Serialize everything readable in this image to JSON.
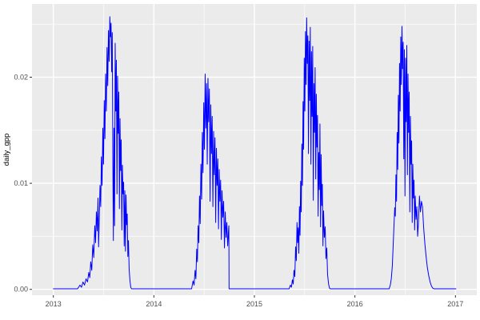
{
  "chart_data": {
    "type": "line",
    "title": "",
    "xlabel": "",
    "ylabel": "daily_gpp",
    "legend": "none",
    "grid": "on",
    "x_range": [
      2012.7875,
      2017.2125
    ],
    "y_range": [
      -0.00055,
      0.0269
    ],
    "x_ticks": [
      2013,
      2014,
      2015,
      2016,
      2017
    ],
    "x_tick_labels": [
      "2013",
      "2014",
      "2015",
      "2016",
      "2017"
    ],
    "x_minor_ticks": [
      2013.5,
      2014.5,
      2015.5,
      2016.5
    ],
    "y_ticks": [
      0,
      0.01,
      0.02
    ],
    "y_tick_labels": [
      "0.00",
      "0.01",
      "0.02"
    ],
    "y_minor_ticks": [
      0.005,
      0.015,
      0.025
    ],
    "colors": {
      "panel_background": "#EBEBEB",
      "gridline": "#FFFFFF",
      "line": "#0000FF",
      "axis_text": "#4D4D4D",
      "tick_mark": "#333333",
      "figure_background": "#FFFFFF"
    },
    "series": [
      {
        "name": "daily_gpp",
        "color": "#0000FF",
        "points": [
          [
            2013.0,
            5e-05
          ],
          [
            2013.24,
            5e-05
          ],
          [
            2013.265,
            0.0004
          ],
          [
            2013.28,
            0.0002
          ],
          [
            2013.295,
            0.0007
          ],
          [
            2013.31,
            0.0004
          ],
          [
            2013.325,
            0.001
          ],
          [
            2013.34,
            0.0007
          ],
          [
            2013.352,
            0.0016
          ],
          [
            2013.362,
            0.0011
          ],
          [
            2013.372,
            0.0026
          ],
          [
            2013.382,
            0.0018
          ],
          [
            2013.392,
            0.0042
          ],
          [
            2013.402,
            0.003
          ],
          [
            2013.412,
            0.006
          ],
          [
            2013.42,
            0.0044
          ],
          [
            2013.428,
            0.0073
          ],
          [
            2013.436,
            0.0055
          ],
          [
            2013.444,
            0.0086
          ],
          [
            2013.45,
            0.004
          ],
          [
            2013.457,
            0.0068
          ],
          [
            2013.464,
            0.0098
          ],
          [
            2013.471,
            0.0078
          ],
          [
            2013.478,
            0.0125
          ],
          [
            2013.485,
            0.0098
          ],
          [
            2013.492,
            0.0152
          ],
          [
            2013.499,
            0.0118
          ],
          [
            2013.506,
            0.0178
          ],
          [
            2013.513,
            0.0142
          ],
          [
            2013.52,
            0.0203
          ],
          [
            2013.527,
            0.0168
          ],
          [
            2013.534,
            0.0228
          ],
          [
            2013.541,
            0.0192
          ],
          [
            2013.548,
            0.0244
          ],
          [
            2013.555,
            0.0215
          ],
          [
            2013.562,
            0.0257
          ],
          [
            2013.568,
            0.0238
          ],
          [
            2013.574,
            0.0251
          ],
          [
            2013.58,
            0.0205
          ],
          [
            2013.586,
            0.0242
          ],
          [
            2013.592,
            0.0118
          ],
          [
            2013.597,
            0.0046
          ],
          [
            2013.603,
            0.0152
          ],
          [
            2013.609,
            0.006
          ],
          [
            2013.615,
            0.0232
          ],
          [
            2013.621,
            0.0168
          ],
          [
            2013.627,
            0.0216
          ],
          [
            2013.633,
            0.009
          ],
          [
            2013.639,
            0.0201
          ],
          [
            2013.645,
            0.0147
          ],
          [
            2013.651,
            0.0186
          ],
          [
            2013.657,
            0.0076
          ],
          [
            2013.663,
            0.0161
          ],
          [
            2013.669,
            0.0112
          ],
          [
            2013.675,
            0.0141
          ],
          [
            2013.681,
            0.0056
          ],
          [
            2013.687,
            0.0117
          ],
          [
            2013.693,
            0.009
          ],
          [
            2013.699,
            0.0101
          ],
          [
            2013.705,
            0.0041
          ],
          [
            2013.711,
            0.0093
          ],
          [
            2013.717,
            0.0036
          ],
          [
            2013.723,
            0.0089
          ],
          [
            2013.729,
            0.0061
          ],
          [
            2013.735,
            0.0071
          ],
          [
            2013.741,
            0.0031
          ],
          [
            2013.747,
            0.0046
          ],
          [
            2013.754,
            0.0019
          ],
          [
            2013.762,
            0.0008
          ],
          [
            2013.77,
            0.0002
          ],
          [
            2013.778,
            5e-05
          ],
          [
            2014.375,
            5e-05
          ],
          [
            2014.39,
            0.0008
          ],
          [
            2014.4,
            0.0004
          ],
          [
            2014.41,
            0.0018
          ],
          [
            2014.418,
            0.001
          ],
          [
            2014.426,
            0.0038
          ],
          [
            2014.433,
            0.0026
          ],
          [
            2014.44,
            0.006
          ],
          [
            2014.447,
            0.0044
          ],
          [
            2014.454,
            0.0088
          ],
          [
            2014.461,
            0.0062
          ],
          [
            2014.468,
            0.0118
          ],
          [
            2014.475,
            0.0085
          ],
          [
            2014.482,
            0.0148
          ],
          [
            2014.489,
            0.011
          ],
          [
            2014.496,
            0.0176
          ],
          [
            2014.503,
            0.0132
          ],
          [
            2014.51,
            0.0203
          ],
          [
            2014.517,
            0.0152
          ],
          [
            2014.524,
            0.0194
          ],
          [
            2014.531,
            0.0118
          ],
          [
            2014.538,
            0.0199
          ],
          [
            2014.545,
            0.0158
          ],
          [
            2014.552,
            0.0189
          ],
          [
            2014.559,
            0.0083
          ],
          [
            2014.566,
            0.0174
          ],
          [
            2014.573,
            0.0128
          ],
          [
            2014.58,
            0.0163
          ],
          [
            2014.587,
            0.0078
          ],
          [
            2014.594,
            0.0149
          ],
          [
            2014.601,
            0.0108
          ],
          [
            2014.608,
            0.0143
          ],
          [
            2014.615,
            0.0063
          ],
          [
            2014.622,
            0.0133
          ],
          [
            2014.629,
            0.0098
          ],
          [
            2014.636,
            0.0123
          ],
          [
            2014.643,
            0.0057
          ],
          [
            2014.65,
            0.0113
          ],
          [
            2014.657,
            0.0083
          ],
          [
            2014.664,
            0.0103
          ],
          [
            2014.671,
            0.0047
          ],
          [
            2014.678,
            0.0093
          ],
          [
            2014.686,
            0.0068
          ],
          [
            2014.694,
            0.0083
          ],
          [
            2014.702,
            0.0039
          ],
          [
            2014.71,
            0.0073
          ],
          [
            2014.718,
            0.0049
          ],
          [
            2014.726,
            0.0063
          ],
          [
            2014.734,
            0.0041
          ],
          [
            2014.741,
            0.0053
          ],
          [
            2014.746,
            0.006
          ],
          [
            2014.748,
            5e-05
          ],
          [
            2015.345,
            5e-05
          ],
          [
            2015.358,
            0.0004
          ],
          [
            2015.368,
            0.0002
          ],
          [
            2015.378,
            0.0009
          ],
          [
            2015.386,
            0.0005
          ],
          [
            2015.394,
            0.0018
          ],
          [
            2015.402,
            0.0012
          ],
          [
            2015.41,
            0.004
          ],
          [
            2015.417,
            0.0027
          ],
          [
            2015.424,
            0.0063
          ],
          [
            2015.43,
            0.0044
          ],
          [
            2015.436,
            0.0058
          ],
          [
            2015.442,
            0.0034
          ],
          [
            2015.448,
            0.0078
          ],
          [
            2015.454,
            0.0051
          ],
          [
            2015.46,
            0.0102
          ],
          [
            2015.466,
            0.0073
          ],
          [
            2015.472,
            0.0137
          ],
          [
            2015.478,
            0.0098
          ],
          [
            2015.484,
            0.0177
          ],
          [
            2015.49,
            0.0132
          ],
          [
            2015.496,
            0.0218
          ],
          [
            2015.502,
            0.0168
          ],
          [
            2015.508,
            0.0243
          ],
          [
            2015.514,
            0.0193
          ],
          [
            2015.52,
            0.0256
          ],
          [
            2015.526,
            0.0213
          ],
          [
            2015.532,
            0.0239
          ],
          [
            2015.538,
            0.0128
          ],
          [
            2015.544,
            0.0234
          ],
          [
            2015.55,
            0.0178
          ],
          [
            2015.556,
            0.0247
          ],
          [
            2015.562,
            0.0118
          ],
          [
            2015.568,
            0.0224
          ],
          [
            2015.574,
            0.0163
          ],
          [
            2015.58,
            0.0229
          ],
          [
            2015.586,
            0.0084
          ],
          [
            2015.592,
            0.0194
          ],
          [
            2015.598,
            0.0148
          ],
          [
            2015.604,
            0.0209
          ],
          [
            2015.61,
            0.0104
          ],
          [
            2015.616,
            0.0184
          ],
          [
            2015.622,
            0.0134
          ],
          [
            2015.628,
            0.0164
          ],
          [
            2015.634,
            0.0069
          ],
          [
            2015.64,
            0.0129
          ],
          [
            2015.646,
            0.0094
          ],
          [
            2015.652,
            0.0156
          ],
          [
            2015.658,
            0.0059
          ],
          [
            2015.664,
            0.0127
          ],
          [
            2015.67,
            0.0079
          ],
          [
            2015.676,
            0.0099
          ],
          [
            2015.682,
            0.0041
          ],
          [
            2015.688,
            0.0074
          ],
          [
            2015.696,
            0.0049
          ],
          [
            2015.704,
            0.0059
          ],
          [
            2015.712,
            0.0029
          ],
          [
            2015.72,
            0.0039
          ],
          [
            2015.728,
            0.0014
          ],
          [
            2015.738,
            0.0005
          ],
          [
            2015.748,
            0.0001
          ],
          [
            2015.756,
            5e-05
          ],
          [
            2016.34,
            5e-05
          ],
          [
            2016.352,
            0.0004
          ],
          [
            2016.362,
            0.001
          ],
          [
            2016.372,
            0.0022
          ],
          [
            2016.38,
            0.004
          ],
          [
            2016.388,
            0.0059
          ],
          [
            2016.396,
            0.0077
          ],
          [
            2016.402,
            0.0069
          ],
          [
            2016.408,
            0.0108
          ],
          [
            2016.414,
            0.0083
          ],
          [
            2016.42,
            0.0148
          ],
          [
            2016.426,
            0.0113
          ],
          [
            2016.432,
            0.0183
          ],
          [
            2016.438,
            0.0138
          ],
          [
            2016.444,
            0.0213
          ],
          [
            2016.45,
            0.0168
          ],
          [
            2016.456,
            0.0238
          ],
          [
            2016.462,
            0.0193
          ],
          [
            2016.468,
            0.0248
          ],
          [
            2016.474,
            0.0208
          ],
          [
            2016.48,
            0.0233
          ],
          [
            2016.486,
            0.0123
          ],
          [
            2016.492,
            0.0226
          ],
          [
            2016.498,
            0.0088
          ],
          [
            2016.504,
            0.0218
          ],
          [
            2016.51,
            0.0158
          ],
          [
            2016.516,
            0.023
          ],
          [
            2016.522,
            0.0108
          ],
          [
            2016.528,
            0.0203
          ],
          [
            2016.534,
            0.0148
          ],
          [
            2016.54,
            0.0186
          ],
          [
            2016.546,
            0.0073
          ],
          [
            2016.552,
            0.0163
          ],
          [
            2016.558,
            0.0118
          ],
          [
            2016.564,
            0.014
          ],
          [
            2016.57,
            0.0063
          ],
          [
            2016.576,
            0.0118
          ],
          [
            2016.582,
            0.0086
          ],
          [
            2016.588,
            0.0103
          ],
          [
            2016.594,
            0.0056
          ],
          [
            2016.6,
            0.0088
          ],
          [
            2016.608,
            0.0066
          ],
          [
            2016.616,
            0.0078
          ],
          [
            2016.624,
            0.005
          ],
          [
            2016.632,
            0.0063
          ],
          [
            2016.642,
            0.0088
          ],
          [
            2016.652,
            0.0073
          ],
          [
            2016.662,
            0.0083
          ],
          [
            2016.672,
            0.0078
          ],
          [
            2016.684,
            0.0058
          ],
          [
            2016.696,
            0.0043
          ],
          [
            2016.708,
            0.0031
          ],
          [
            2016.72,
            0.0021
          ],
          [
            2016.734,
            0.0013
          ],
          [
            2016.748,
            0.0007
          ],
          [
            2016.762,
            0.0003
          ],
          [
            2016.776,
            0.0001
          ],
          [
            2016.79,
            5e-05
          ],
          [
            2017.005,
            5e-05
          ]
        ]
      }
    ]
  }
}
